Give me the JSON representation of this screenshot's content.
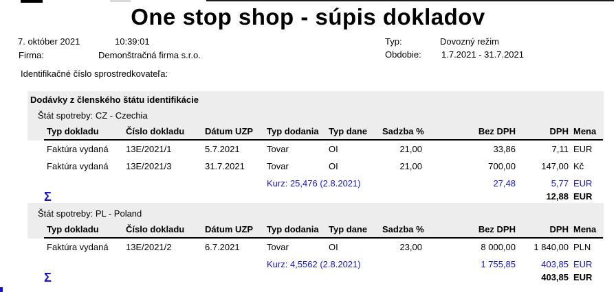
{
  "title": "One stop shop - súpis dokladov",
  "meta": {
    "date": "7. október 2021",
    "time": "10:39:01",
    "firma_label": "Firma:",
    "firma_value": "Demonštračná firma s.r.o.",
    "typ_label": "Typ:",
    "typ_value": "Dovozný režim",
    "obdobie_label": "Obdobie:",
    "obdobie_value": "1.7.2021 - 31.7.2021",
    "intermediary_label": "Identifikačné číslo sprostredkovateľa:"
  },
  "table": {
    "section_title": "Dodávky z členského štátu identifikácie",
    "columns": [
      "Typ dokladu",
      "Číslo dokladu",
      "Dátum UZP",
      "Typ dodania",
      "Typ dane",
      "Sadzba %",
      "Bez DPH",
      "DPH",
      "Mena"
    ],
    "sigma_label": "Σ",
    "sections": [
      {
        "state_label": "Štát spotreby: CZ - Czechia",
        "rows": [
          {
            "kind": "normal",
            "typ": "Faktúra vydaná",
            "cislo": "13E/2021/1",
            "datum": "5.7.2021",
            "dodanie": "Tovar",
            "dane": "OI",
            "sadzba": "21,00",
            "bez_dph": "33,86",
            "dph": "7,11",
            "mena": "EUR"
          },
          {
            "kind": "normal",
            "typ": "Faktúra vydaná",
            "cislo": "13E/2021/3",
            "datum": "31.7.2021",
            "dodanie": "Tovar",
            "dane": "OI",
            "sadzba": "21,00",
            "bez_dph": "700,00",
            "dph": "147,00",
            "mena": "Kč"
          },
          {
            "kind": "kurz",
            "dodanie": "Kurz: 25,476 (2.8.2021)",
            "bez_dph": "27,48",
            "dph": "5,77",
            "mena": "EUR"
          }
        ],
        "total": {
          "dph": "12,88",
          "mena": "EUR"
        }
      },
      {
        "state_label": "Štát spotreby: PL - Poland",
        "rows": [
          {
            "kind": "normal",
            "typ": "Faktúra vydaná",
            "cislo": "13E/2021/2",
            "datum": "6.7.2021",
            "dodanie": "Tovar",
            "dane": "OI",
            "sadzba": "23,00",
            "bez_dph": "8 000,00",
            "dph": "1 840,00",
            "mena": "PLN"
          },
          {
            "kind": "kurz",
            "dodanie": "Kurz: 4,5562 (2.8.2021)",
            "bez_dph": "1 755,85",
            "dph": "403,85",
            "mena": "EUR"
          }
        ],
        "total": {
          "dph": "403,85",
          "mena": "EUR"
        }
      }
    ]
  },
  "colors": {
    "accent_blue": "#1515CC",
    "band_gray": "#EDEDED"
  }
}
